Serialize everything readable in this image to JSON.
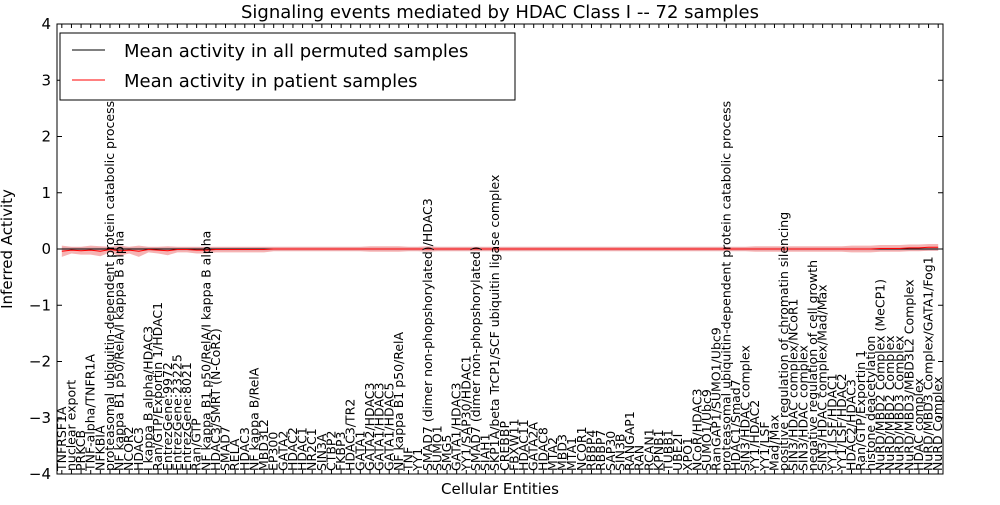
{
  "chart_data": {
    "type": "line",
    "title": "Signaling events mediated by HDAC Class I -- 72 samples",
    "xlabel": "Cellular Entities",
    "ylabel": "Inferred Activity",
    "ylim": [
      -4,
      4
    ],
    "yticks": [
      -4,
      -3,
      -2,
      -1,
      0,
      1,
      2,
      3,
      4
    ],
    "legend_position": "top-left",
    "categories": [
      "TNFRSF1A",
      "nuclear export",
      "PRKCB",
      "TNF-alpha/TNFR1A",
      "NFKBIA",
      "proteasomal ubiquitin-dependent protein catabolic process",
      "NF kappa B1 p50/RelA/I kappa B alpha",
      "NCOR2",
      "HDAC3",
      "I kappa B alpha/HDAC3",
      "Ran/GTP/Exportin 1/HDAC1",
      "EntrezGene:9972",
      "EntrezGene:23225",
      "EntrezGene:8021",
      "Ran/GTP",
      "NF kappa B1 p50/RelA/I kappa B alpha",
      "HDAC3/SMRT (N-CoR2)",
      "SMAD7",
      "RELA",
      "HDAC3",
      "NF kappa B/RelA",
      "MBD3L2",
      "EP300",
      "GATA2",
      "HDAC2",
      "HDAC1",
      "NR2C1",
      "SIN3A",
      "CTBP2",
      "FKBP3",
      "HDAC3/TR2",
      "GATA1",
      "GATA2/HDAC3",
      "GATA1/HDAC3",
      "GATA1/HDAC5",
      "NF kappa B1 p50/RelA",
      "TNF",
      "YY1",
      "SMAD7 (dimer non-phopshorylated)/HDAC3",
      "SUMO1",
      "SMG5",
      "GATA1/HDAC3",
      "YY1/SAP30/HDAC1",
      "SMAD7 (dimer non-phopshorylated)",
      "SIAH1",
      "SKP1A/beta TrCP1/SCF ubiquitin ligase complex",
      "CREBBP",
      "FBXW11",
      "HDAC11",
      "GATA2A",
      "HDAC8",
      "MTA2",
      "MBD3",
      "MTA1",
      "NCOR1",
      "RBBP4",
      "RBBP7",
      "SAP30",
      "SIN3B",
      "RANGAP1",
      "RAN",
      "RCAN1",
      "KPNB1",
      "TUBB1",
      "UBE2I",
      "XPO1",
      "NCoR/HDAC3",
      "SUMO1/Ubc9",
      "RanGAP1/SUMO1/Ubc9",
      "proteasomal ubiquitin-dependent protein catabolic process",
      "HDAC1/Smad7",
      "SIN3/HDAC complex",
      "YY1/HDAC2",
      "YY1/LSF",
      "Mad/Max",
      "positive regulation of chromatin silencing",
      "SIN3/HDAC complex/NCoR1",
      "SIN3/HDAC complex",
      "negative regulation of cell growth",
      "SIN3/HDAC complex/Mad/Max",
      "YY1/LSF/HDAC1",
      "YY1/LSF/HDAC2",
      "HDAC2/HDAC3",
      "Ran/GTP/Exportin 1",
      "histone deacetylation",
      "NuRD/MBD2 Complex (MeCP1)",
      "NuRD/MBD2 Complex",
      "NuRD/MBD3 Complex",
      "NuRD/MBD3/MBD3L2 Complex",
      "HDAC complex",
      "NuRD/MBD3 Complex/GATA1/Fog1",
      "NuRD Complex"
    ],
    "series": [
      {
        "name": "Mean activity in all permuted samples",
        "color": "#000000",
        "values": [
          0,
          0,
          0,
          0,
          0,
          0,
          0,
          0,
          0,
          0,
          0,
          0,
          0,
          0,
          0,
          0,
          0,
          0,
          0,
          0,
          0,
          0,
          0,
          0,
          0,
          0,
          0,
          0,
          0,
          0,
          0,
          0,
          0,
          0,
          0,
          0,
          0,
          0,
          0,
          0,
          0,
          0,
          0,
          0,
          0,
          0,
          0,
          0,
          0,
          0,
          0,
          0,
          0,
          0,
          0,
          0,
          0,
          0,
          0,
          0,
          0,
          0,
          0,
          0,
          0,
          0,
          0,
          0,
          0,
          0,
          0,
          0,
          0,
          0,
          0,
          0,
          0,
          0,
          0,
          0,
          0,
          0,
          0,
          0,
          0,
          0,
          0,
          0,
          0,
          0,
          0,
          0
        ],
        "band": 0.03
      },
      {
        "name": "Mean activity in patient samples",
        "color": "#ff0000",
        "values": [
          -0.04,
          -0.02,
          -0.03,
          -0.02,
          -0.04,
          -0.01,
          -0.03,
          -0.02,
          -0.04,
          -0.01,
          -0.02,
          -0.03,
          -0.01,
          -0.01,
          -0.02,
          -0.02,
          -0.01,
          -0.01,
          -0.01,
          -0.01,
          -0.01,
          -0.01,
          0.0,
          0.0,
          0.0,
          0.0,
          0.0,
          0.0,
          0.0,
          0.0,
          0.0,
          0.0,
          0.0,
          0.0,
          0.0,
          0.0,
          0.0,
          0.0,
          0.0,
          0.0,
          0.0,
          0.0,
          0.0,
          0.0,
          0.0,
          0.0,
          0.0,
          0.0,
          0.0,
          0.0,
          0.0,
          0.0,
          0.0,
          0.0,
          0.0,
          0.0,
          0.0,
          0.0,
          0.0,
          0.0,
          0.0,
          0.0,
          0.0,
          0.0,
          0.0,
          0.0,
          0.0,
          0.0,
          0.0,
          0.0,
          0.0,
          0.0,
          0.0,
          0.0,
          0.0,
          0.0,
          0.0,
          0.0,
          0.0,
          0.0,
          0.0,
          0.0,
          0.0,
          0.0,
          0.0,
          0.01,
          0.01,
          0.01,
          0.02,
          0.02,
          0.03,
          0.03
        ],
        "band": [
          0.1,
          0.06,
          0.07,
          0.08,
          0.09,
          0.05,
          0.09,
          0.06,
          0.1,
          0.05,
          0.06,
          0.08,
          0.05,
          0.05,
          0.06,
          0.06,
          0.05,
          0.05,
          0.05,
          0.05,
          0.05,
          0.05,
          0.04,
          0.04,
          0.04,
          0.04,
          0.04,
          0.04,
          0.04,
          0.04,
          0.04,
          0.04,
          0.05,
          0.05,
          0.05,
          0.05,
          0.04,
          0.04,
          0.05,
          0.04,
          0.04,
          0.04,
          0.04,
          0.04,
          0.04,
          0.04,
          0.04,
          0.04,
          0.04,
          0.04,
          0.04,
          0.04,
          0.04,
          0.04,
          0.04,
          0.04,
          0.04,
          0.04,
          0.04,
          0.04,
          0.04,
          0.04,
          0.04,
          0.04,
          0.04,
          0.04,
          0.04,
          0.04,
          0.04,
          0.04,
          0.04,
          0.04,
          0.05,
          0.05,
          0.05,
          0.05,
          0.05,
          0.05,
          0.05,
          0.05,
          0.05,
          0.05,
          0.06,
          0.06,
          0.06,
          0.06,
          0.06,
          0.06,
          0.06,
          0.06,
          0.06,
          0.06
        ]
      }
    ]
  }
}
